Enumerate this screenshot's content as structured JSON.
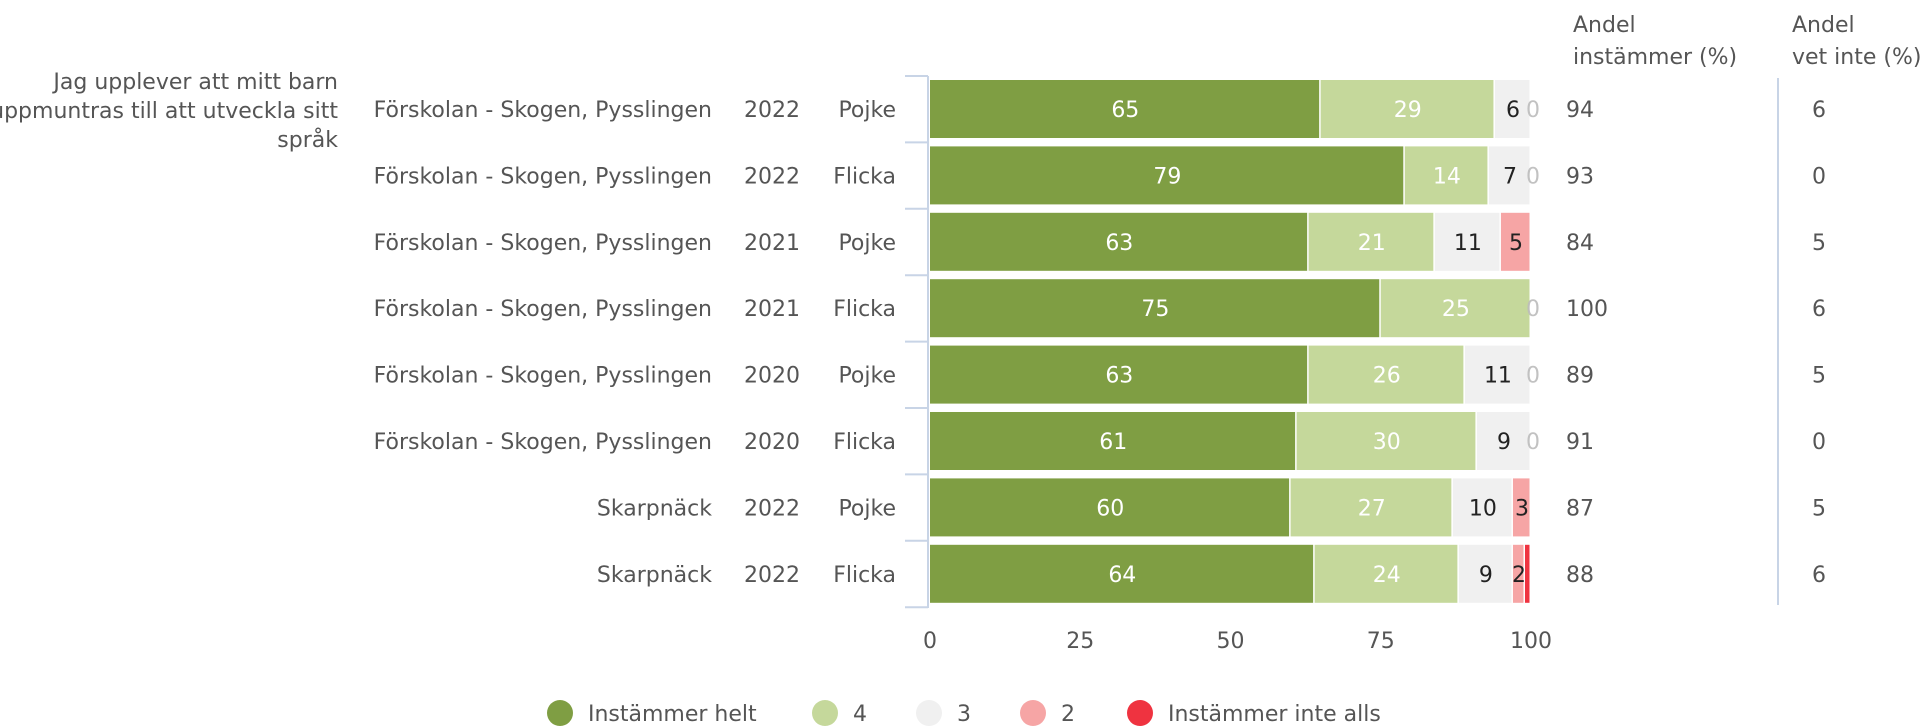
{
  "chart_data": {
    "type": "bar",
    "question": "Jag upplever att mitt barn uppmuntras till att utveckla sitt språk",
    "question_lines": [
      "Jag upplever att mitt barn",
      "uppmuntras till att utveckla sitt",
      "språk"
    ],
    "column_headers": {
      "agree": [
        "Andel",
        "instämmer (%)"
      ],
      "dontknow": [
        "Andel",
        "vet inte (%)"
      ]
    },
    "rows": [
      {
        "unit": "Förskolan - Skogen, Pysslingen",
        "year": "2022",
        "gender": "Pojke",
        "values": [
          65,
          29,
          6,
          0,
          0
        ],
        "agree": 94,
        "dontknow": 6
      },
      {
        "unit": "Förskolan - Skogen, Pysslingen",
        "year": "2022",
        "gender": "Flicka",
        "values": [
          79,
          14,
          7,
          0,
          0
        ],
        "agree": 93,
        "dontknow": 0
      },
      {
        "unit": "Förskolan - Skogen, Pysslingen",
        "year": "2021",
        "gender": "Pojke",
        "values": [
          63,
          21,
          11,
          5,
          0
        ],
        "agree": 84,
        "dontknow": 5
      },
      {
        "unit": "Förskolan - Skogen, Pysslingen",
        "year": "2021",
        "gender": "Flicka",
        "values": [
          75,
          25,
          0,
          0,
          0
        ],
        "agree": 100,
        "dontknow": 6
      },
      {
        "unit": "Förskolan - Skogen, Pysslingen",
        "year": "2020",
        "gender": "Pojke",
        "values": [
          63,
          26,
          11,
          0,
          0
        ],
        "agree": 89,
        "dontknow": 5
      },
      {
        "unit": "Förskolan - Skogen, Pysslingen",
        "year": "2020",
        "gender": "Flicka",
        "values": [
          61,
          30,
          9,
          0,
          0
        ],
        "agree": 91,
        "dontknow": 0
      },
      {
        "unit": "Skarpnäck",
        "year": "2022",
        "gender": "Pojke",
        "values": [
          60,
          27,
          10,
          3,
          0
        ],
        "agree": 87,
        "dontknow": 5
      },
      {
        "unit": "Skarpnäck",
        "year": "2022",
        "gender": "Flicka",
        "values": [
          64,
          24,
          9,
          2,
          1
        ],
        "agree": 88,
        "dontknow": 6
      }
    ],
    "series": [
      {
        "name": "Instämmer helt",
        "color": "#7f9e43",
        "text_color": "#ffffff"
      },
      {
        "name": "4",
        "color": "#c5d89b",
        "text_color": "#ffffff"
      },
      {
        "name": "3",
        "color": "#f0f0f0",
        "text_color": "#222222"
      },
      {
        "name": "2",
        "color": "#f6a5a5",
        "text_color": "#222222"
      },
      {
        "name": "Instämmer inte alls",
        "color": "#ef3340",
        "text_color": "#222222"
      }
    ],
    "x_ticks": [
      0,
      25,
      50,
      75,
      100
    ],
    "xlim": [
      0,
      100
    ],
    "legend_position": "bottom"
  }
}
